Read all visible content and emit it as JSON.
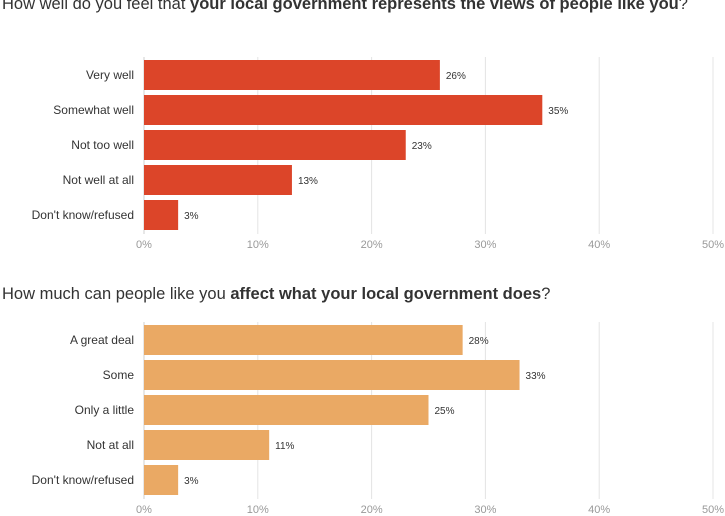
{
  "chart_data": [
    {
      "type": "bar",
      "orientation": "horizontal",
      "title_parts": [
        {
          "text": "How well do you feel that ",
          "bold": false
        },
        {
          "text": "your local government represents the views of people like you",
          "bold": true
        },
        {
          "text": "?",
          "bold": false
        }
      ],
      "categories": [
        "Very well",
        "Somewhat well",
        "Not too well",
        "Not well at all",
        "Don't know/refused"
      ],
      "values": [
        26,
        35,
        23,
        13,
        3
      ],
      "value_labels": [
        "26%",
        "35%",
        "23%",
        "13%",
        "3%"
      ],
      "bar_color": "#dc4529",
      "xlim": [
        0,
        50
      ],
      "x_ticks": [
        "0%",
        "10%",
        "20%",
        "30%",
        "40%",
        "50%"
      ],
      "grid": true
    },
    {
      "type": "bar",
      "orientation": "horizontal",
      "title_parts": [
        {
          "text": "How much can people like you ",
          "bold": false
        },
        {
          "text": "affect what your local government does",
          "bold": true
        },
        {
          "text": "?",
          "bold": false
        }
      ],
      "categories": [
        "A great deal",
        "Some",
        "Only a little",
        "Not at all",
        "Don't know/refused"
      ],
      "values": [
        28,
        33,
        25,
        11,
        3
      ],
      "value_labels": [
        "28%",
        "33%",
        "25%",
        "11%",
        "3%"
      ],
      "bar_color": "#eaa964",
      "xlim": [
        0,
        50
      ],
      "x_ticks": [
        "0%",
        "10%",
        "20%",
        "30%",
        "40%",
        "50%"
      ],
      "grid": true
    }
  ]
}
